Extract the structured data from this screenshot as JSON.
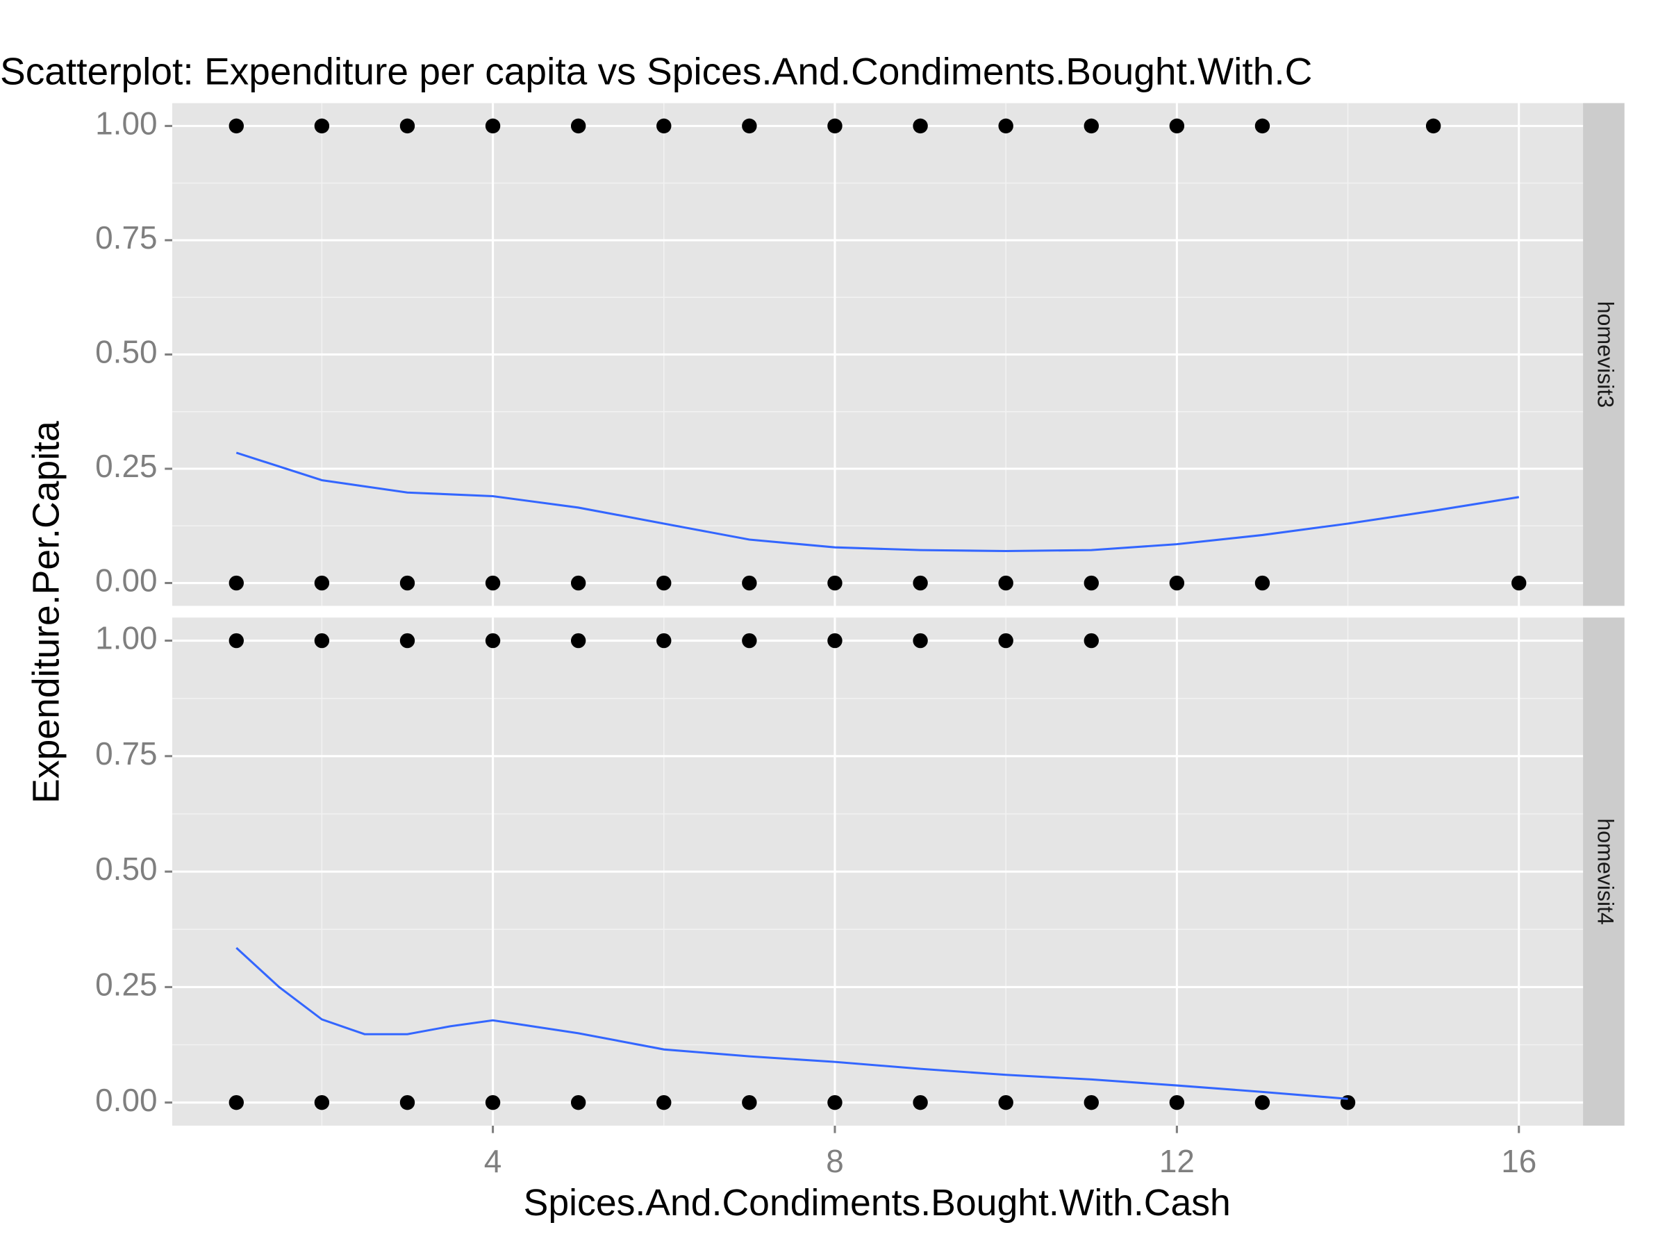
{
  "chart_data": {
    "type": "scatter",
    "title": "Scatterplot: Expenditure per capita vs Spices.And.Condiments.Bought.With.C",
    "x_label": "Spices.And.Condiments.Bought.With.Cash",
    "y_label": "Expenditure.Per.Capita",
    "xlim": [
      0.25,
      16.75
    ],
    "xticks": [
      4,
      8,
      12,
      16
    ],
    "minor_xticks": [
      2,
      6,
      10,
      14
    ],
    "ylim": [
      -0.05,
      1.05
    ],
    "yticks": [
      {
        "value": 0,
        "label": "0.00"
      },
      {
        "value": 0.25,
        "label": "0.25"
      },
      {
        "value": 0.5,
        "label": "0.50"
      },
      {
        "value": 0.75,
        "label": "0.75"
      },
      {
        "value": 1,
        "label": "1.00"
      }
    ],
    "minor_yticks": [
      0.125,
      0.375,
      0.625,
      0.875
    ],
    "grid": true,
    "panels": [
      {
        "label": "homevisit3",
        "series": [
          {
            "type": "scatter",
            "color": "#000000",
            "x": [
              1,
              2,
              3,
              4,
              5,
              6,
              7,
              8,
              9,
              10,
              11,
              12,
              13,
              15,
              1,
              2,
              3,
              4,
              5,
              6,
              7,
              8,
              9,
              10,
              11,
              12,
              13,
              16
            ],
            "values": [
              1,
              1,
              1,
              1,
              1,
              1,
              1,
              1,
              1,
              1,
              1,
              1,
              1,
              1,
              0,
              0,
              0,
              0,
              0,
              0,
              0,
              0,
              0,
              0,
              0,
              0,
              0,
              0
            ]
          },
          {
            "type": "line",
            "color": "#3366ff",
            "x": [
              1,
              2,
              3,
              4,
              5,
              6,
              7,
              8,
              9,
              10,
              11,
              12,
              13,
              14,
              15,
              16
            ],
            "values": [
              0.285,
              0.225,
              0.198,
              0.19,
              0.165,
              0.13,
              0.095,
              0.078,
              0.072,
              0.07,
              0.072,
              0.085,
              0.105,
              0.13,
              0.158,
              0.188
            ]
          }
        ]
      },
      {
        "label": "homevisit4",
        "series": [
          {
            "type": "scatter",
            "color": "#000000",
            "x": [
              1,
              2,
              3,
              4,
              5,
              6,
              7,
              8,
              9,
              10,
              11,
              1,
              2,
              3,
              4,
              5,
              6,
              7,
              8,
              9,
              10,
              11,
              12,
              13,
              14
            ],
            "values": [
              1,
              1,
              1,
              1,
              1,
              1,
              1,
              1,
              1,
              1,
              1,
              0,
              0,
              0,
              0,
              0,
              0,
              0,
              0,
              0,
              0,
              0,
              0,
              0,
              0
            ]
          },
          {
            "type": "line",
            "color": "#3366ff",
            "x": [
              1,
              1.5,
              2,
              2.5,
              3,
              3.5,
              4,
              5,
              6,
              7,
              8,
              9,
              10,
              11,
              12,
              13,
              14
            ],
            "values": [
              0.335,
              0.25,
              0.18,
              0.148,
              0.148,
              0.165,
              0.178,
              0.15,
              0.115,
              0.1,
              0.088,
              0.073,
              0.06,
              0.05,
              0.037,
              0.023,
              0.008
            ]
          }
        ]
      }
    ]
  }
}
